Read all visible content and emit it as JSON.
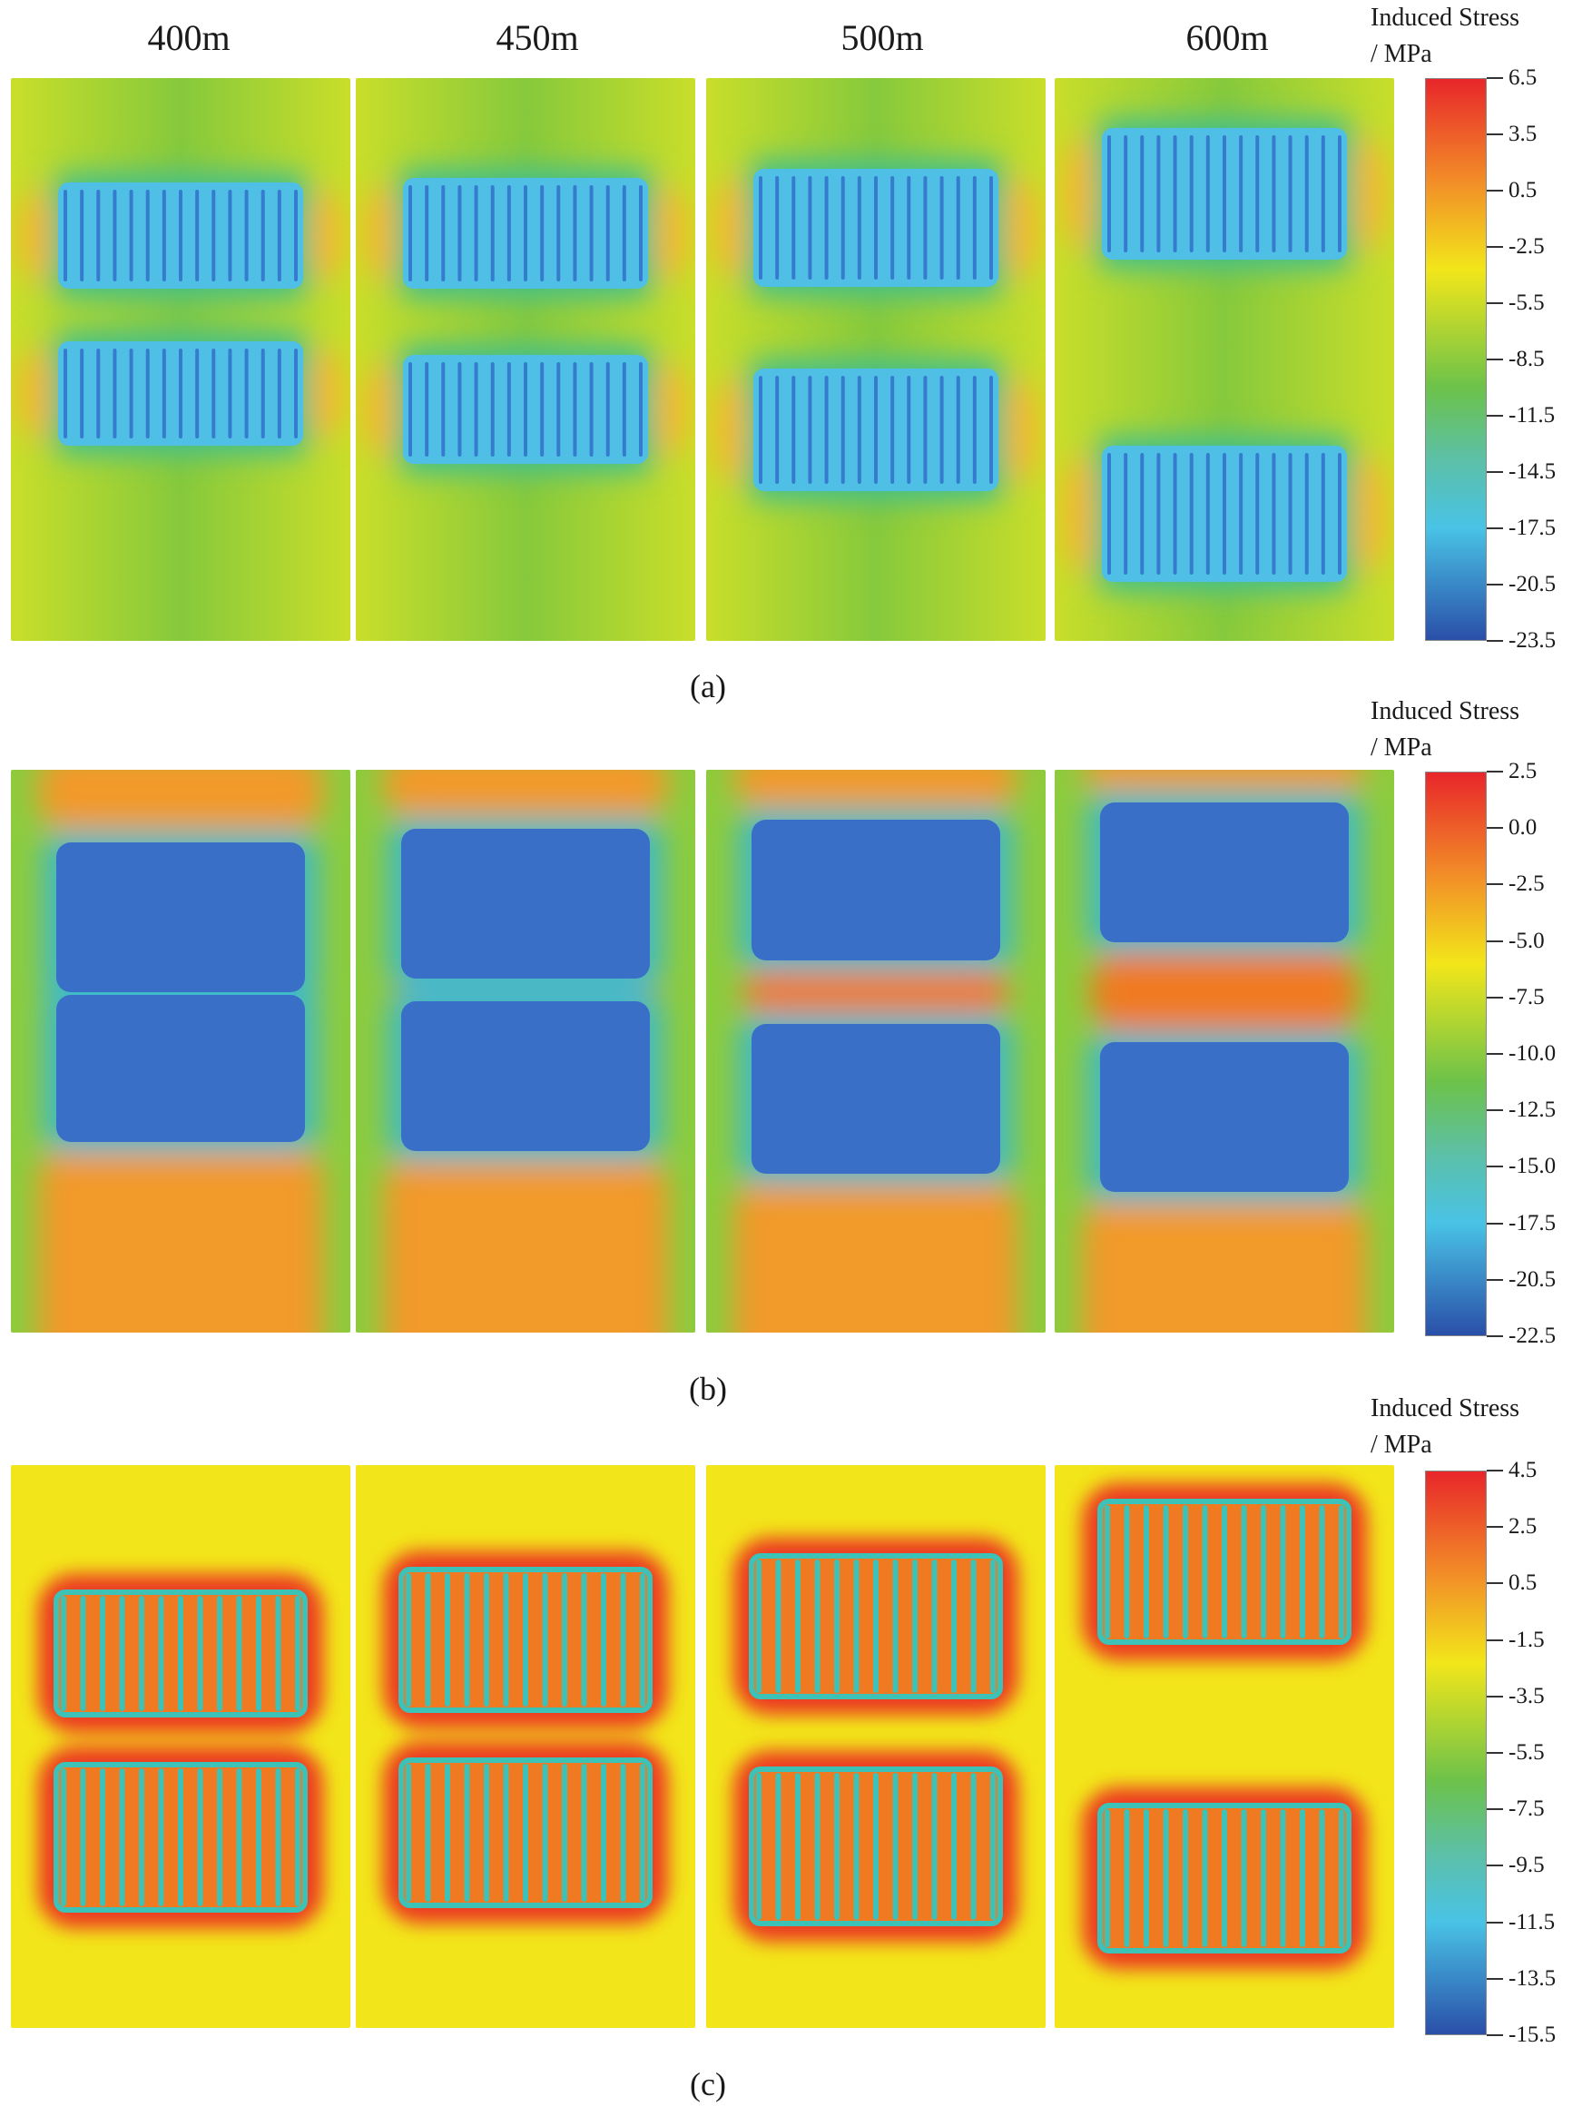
{
  "column_headers": [
    "400m",
    "450m",
    "500m",
    "600m"
  ],
  "sections": [
    {
      "caption": "(a)",
      "colorbar": {
        "title_line1": "Induced Stress",
        "title_line2": "/ MPa",
        "ticks": [
          "6.5",
          "3.5",
          "0.5",
          "-2.5",
          "-5.5",
          "-8.5",
          "-11.5",
          "-14.5",
          "-17.5",
          "-20.5",
          "-23.5"
        ]
      }
    },
    {
      "caption": "(b)",
      "colorbar": {
        "title_line1": "Induced Stress",
        "title_line2": "/ MPa",
        "ticks": [
          "2.5",
          "0.0",
          "-2.5",
          "-5.0",
          "-7.5",
          "-10.0",
          "-12.5",
          "-15.0",
          "-17.5",
          "-20.5",
          "-22.5"
        ]
      }
    },
    {
      "caption": "(c)",
      "colorbar": {
        "title_line1": "Induced Stress",
        "title_line2": "/ MPa",
        "ticks": [
          "4.5",
          "2.5",
          "0.5",
          "-1.5",
          "-3.5",
          "-5.5",
          "-7.5",
          "-9.5",
          "-11.5",
          "-13.5",
          "-15.5"
        ]
      }
    }
  ],
  "colors": {
    "red": "#e8262a",
    "orange": "#f28c28",
    "yellow": "#f2e61a",
    "green": "#6cc24a",
    "cyan": "#49c3e6",
    "blue": "#2a4fa8"
  }
}
